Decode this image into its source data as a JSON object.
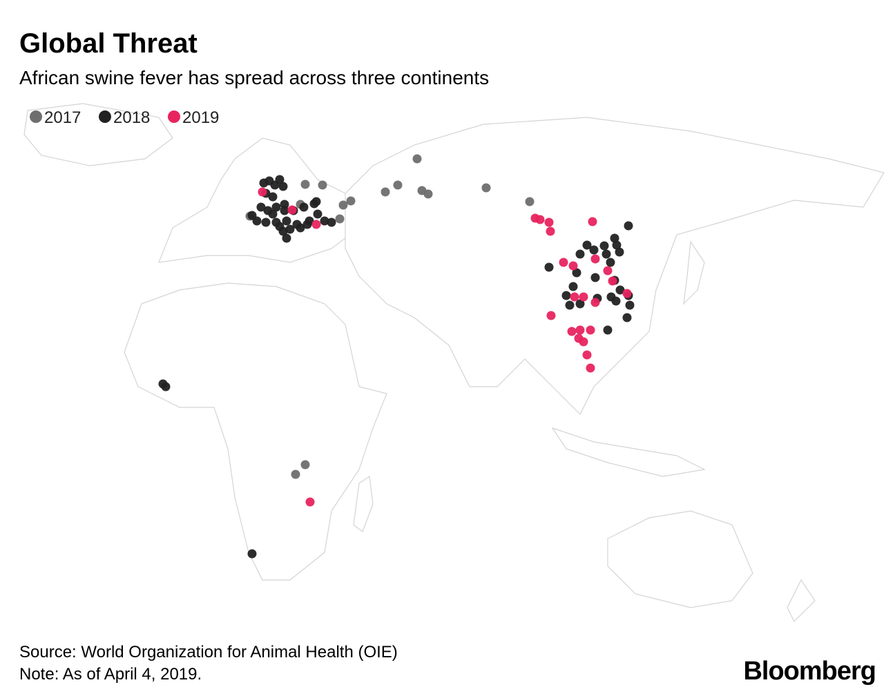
{
  "title": "Global Threat",
  "subtitle": "African swine fever has spread across three continents",
  "legend": [
    {
      "name": "2017",
      "color": "#6e6e6e"
    },
    {
      "name": "2018",
      "color": "#222222"
    },
    {
      "name": "2019",
      "color": "#e8245f"
    }
  ],
  "source": "Source: World Organization for Animal Health (OIE)",
  "note": "Note: As of April 4, 2019.",
  "brand": "Bloomberg"
}
